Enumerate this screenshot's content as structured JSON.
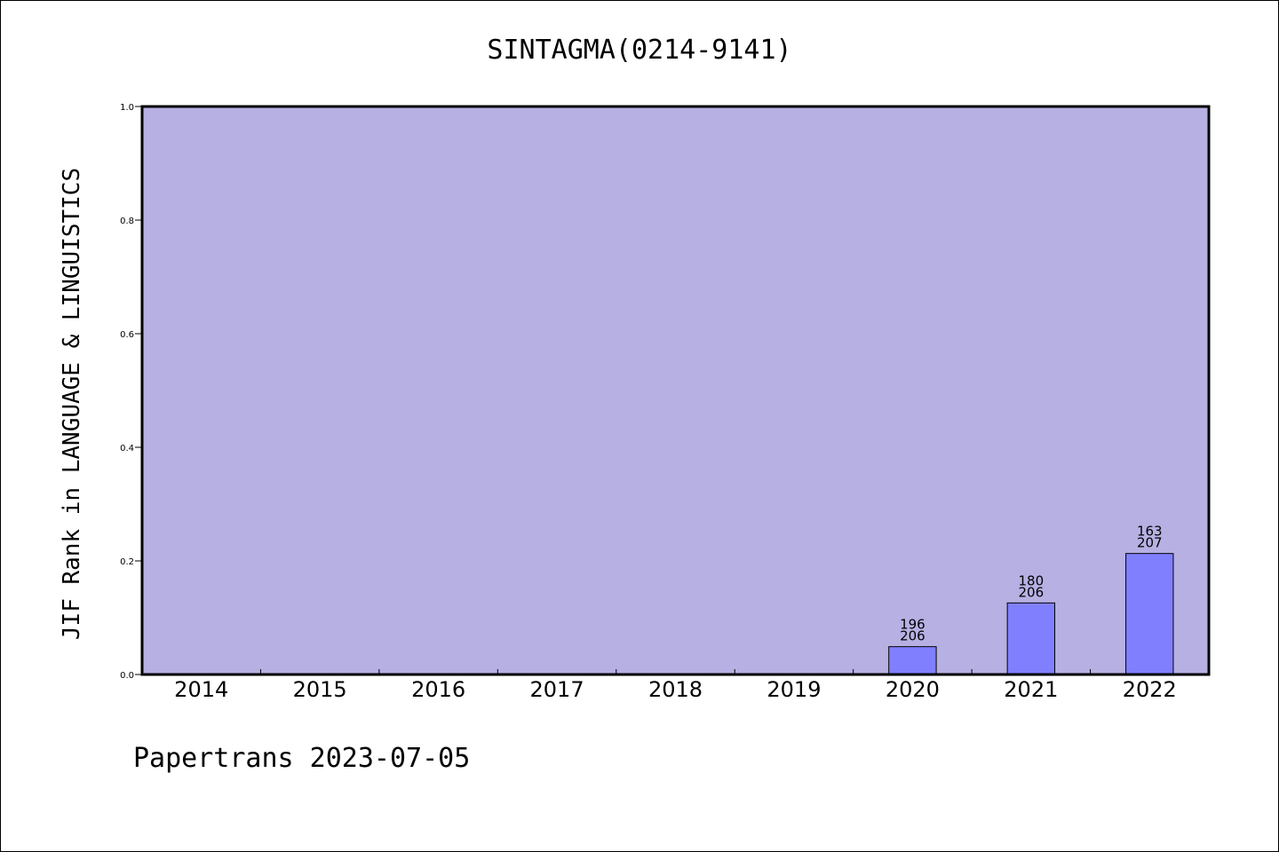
{
  "chart_data": {
    "type": "bar",
    "title": "SINTAGMA(0214-9141)",
    "xlabel": "",
    "ylabel": "JIF Rank in LANGUAGE & LINGUISTICS",
    "ylim": [
      0.0,
      1.0
    ],
    "yticks": [
      "0.0",
      "0.2",
      "0.4",
      "0.6",
      "0.8",
      "1.0"
    ],
    "categories": [
      "2014",
      "2015",
      "2016",
      "2017",
      "2018",
      "2019",
      "2020",
      "2021",
      "2022"
    ],
    "values": [
      null,
      null,
      null,
      null,
      null,
      null,
      0.049,
      0.126,
      0.213
    ],
    "bar_labels": [
      null,
      null,
      null,
      null,
      null,
      null,
      {
        "rank": "196",
        "total": "206"
      },
      {
        "rank": "180",
        "total": "206"
      },
      {
        "rank": "163",
        "total": "207"
      }
    ],
    "grid": false,
    "colors": {
      "plot_background": "#b6b0e3",
      "bar_fill": "#8080ff",
      "bar_edge": "#000000"
    }
  },
  "footer": {
    "text": "Papertrans 2023-07-05"
  }
}
